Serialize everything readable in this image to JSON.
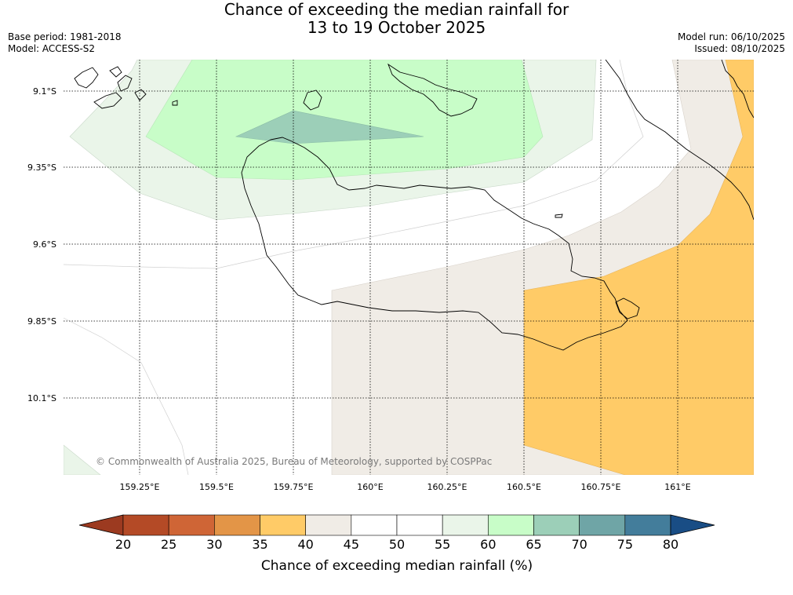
{
  "title": {
    "line1": "Chance of exceeding the median rainfall for",
    "line2": "13 to 19 October 2025"
  },
  "meta": {
    "base_period": "Base period: 1981-2018",
    "model": "Model: ACCESS-S2",
    "model_run": "Model run: 06/10/2025",
    "issued": "Issued: 08/10/2025"
  },
  "map": {
    "lat_labels": [
      "9.1°S",
      "9.35°S",
      "9.6°S",
      "9.85°S",
      "10.1°S"
    ],
    "lon_labels": [
      "159.25°E",
      "159.5°E",
      "159.75°E",
      "160°E",
      "160.25°E",
      "160.5°E",
      "160.75°E",
      "161°E"
    ],
    "copyright": "© Commonwealth of Australia 2025, Bureau of Meteorology, supported by COSPPac"
  },
  "colorbar": {
    "ticks": [
      "20",
      "25",
      "30",
      "35",
      "40",
      "45",
      "50",
      "55",
      "60",
      "65",
      "70",
      "75",
      "80"
    ],
    "colors": [
      "#b44a26",
      "#cf6536",
      "#e39547",
      "#ffcb67",
      "#f0ece6",
      "#ffffff",
      "#ffffff",
      "#eaf5e9",
      "#c8fdc8",
      "#9ccfb8",
      "#6fa5a6",
      "#437d9b"
    ],
    "under_color": "#9c3a20",
    "over_color": "#194d85",
    "label": "Chance of exceeding median rainfall (%)"
  }
}
